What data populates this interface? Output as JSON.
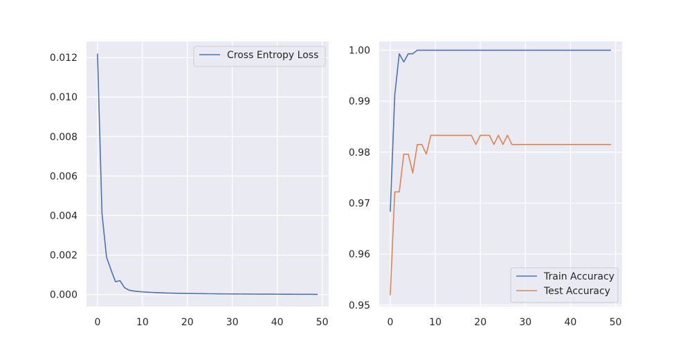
{
  "chart_data": [
    {
      "type": "line",
      "title": "",
      "xlabel": "",
      "ylabel": "",
      "xlim": [
        -2.45,
        51.45
      ],
      "ylim": [
        -0.00061,
        0.01281
      ],
      "xticks": [
        0,
        10,
        20,
        30,
        40,
        50
      ],
      "xtick_labels": [
        "0",
        "10",
        "20",
        "30",
        "40",
        "50"
      ],
      "yticks": [
        0,
        0.002,
        0.004,
        0.006,
        0.008,
        0.01,
        0.012
      ],
      "ytick_labels": [
        "0.000",
        "0.002",
        "0.004",
        "0.006",
        "0.008",
        "0.010",
        "0.012"
      ],
      "grid": true,
      "legend_position": "top-right",
      "series": [
        {
          "name": "Cross Entropy Loss",
          "color": "#4c72b0",
          "x": [
            0,
            1,
            2,
            3,
            4,
            5,
            6,
            7,
            8,
            9,
            10,
            11,
            12,
            13,
            14,
            15,
            16,
            17,
            18,
            19,
            20,
            21,
            22,
            23,
            24,
            25,
            26,
            27,
            28,
            29,
            30,
            31,
            32,
            33,
            34,
            35,
            36,
            37,
            38,
            39,
            40,
            41,
            42,
            43,
            44,
            45,
            46,
            47,
            48,
            49
          ],
          "y": [
            0.0122,
            0.0041,
            0.0019,
            0.00125,
            0.00065,
            0.0007,
            0.00035,
            0.00022,
            0.00018,
            0.000155,
            0.000135,
            0.00012,
            0.000108,
            9.7e-05,
            8.8e-05,
            8e-05,
            7.3e-05,
            6.7e-05,
            6.2e-05,
            5.7e-05,
            5.3e-05,
            4.9e-05,
            4.6e-05,
            4.3e-05,
            4e-05,
            3.8e-05,
            3.5e-05,
            3.3e-05,
            3.1e-05,
            2.9e-05,
            2.8e-05,
            2.6e-05,
            2.5e-05,
            2.3e-05,
            2.2e-05,
            2.1e-05,
            2e-05,
            1.9e-05,
            1.8e-05,
            1.7e-05,
            1.6e-05,
            1.5e-05,
            1.4e-05,
            1.3e-05,
            1.2e-05,
            1.1e-05,
            1e-05,
            9e-06,
            8e-06,
            7e-06
          ]
        }
      ]
    },
    {
      "type": "line",
      "title": "",
      "xlabel": "",
      "ylabel": "",
      "xlim": [
        -2.45,
        51.45
      ],
      "ylim": [
        0.9497,
        1.0017
      ],
      "xticks": [
        0,
        10,
        20,
        30,
        40,
        50
      ],
      "xtick_labels": [
        "0",
        "10",
        "20",
        "30",
        "40",
        "50"
      ],
      "yticks": [
        0.95,
        0.96,
        0.97,
        0.98,
        0.99,
        1.0
      ],
      "ytick_labels": [
        "0.95",
        "0.96",
        "0.97",
        "0.98",
        "0.99",
        "1.00"
      ],
      "grid": true,
      "legend_position": "bottom-right",
      "series": [
        {
          "name": "Train Accuracy",
          "color": "#4c72b0",
          "x": [
            0,
            1,
            2,
            3,
            4,
            5,
            6,
            7,
            8,
            9,
            10,
            11,
            12,
            13,
            14,
            15,
            16,
            17,
            18,
            19,
            20,
            21,
            22,
            23,
            24,
            25,
            26,
            27,
            28,
            29,
            30,
            31,
            32,
            33,
            34,
            35,
            36,
            37,
            38,
            39,
            40,
            41,
            42,
            43,
            44,
            45,
            46,
            47,
            48,
            49
          ],
          "y": [
            0.9683,
            0.9912,
            0.9993,
            0.9977,
            0.9993,
            0.9993,
            1.0,
            1.0,
            1.0,
            1.0,
            1.0,
            1.0,
            1.0,
            1.0,
            1.0,
            1.0,
            1.0,
            1.0,
            1.0,
            1.0,
            1.0,
            1.0,
            1.0,
            1.0,
            1.0,
            1.0,
            1.0,
            1.0,
            1.0,
            1.0,
            1.0,
            1.0,
            1.0,
            1.0,
            1.0,
            1.0,
            1.0,
            1.0,
            1.0,
            1.0,
            1.0,
            1.0,
            1.0,
            1.0,
            1.0,
            1.0,
            1.0,
            1.0,
            1.0,
            1.0
          ]
        },
        {
          "name": "Test Accuracy",
          "color": "#dd8452",
          "x": [
            0,
            1,
            2,
            3,
            4,
            5,
            6,
            7,
            8,
            9,
            10,
            11,
            12,
            13,
            14,
            15,
            16,
            17,
            18,
            19,
            20,
            21,
            22,
            23,
            24,
            25,
            26,
            27,
            28,
            29,
            30,
            31,
            32,
            33,
            34,
            35,
            36,
            37,
            38,
            39,
            40,
            41,
            42,
            43,
            44,
            45,
            46,
            47,
            48,
            49
          ],
          "y": [
            0.9519,
            0.9722,
            0.9722,
            0.9796,
            0.9796,
            0.9759,
            0.9815,
            0.9815,
            0.9796,
            0.9833,
            0.9833,
            0.9833,
            0.9833,
            0.9833,
            0.9833,
            0.9833,
            0.9833,
            0.9833,
            0.9833,
            0.9815,
            0.9833,
            0.9833,
            0.9833,
            0.9815,
            0.9833,
            0.9815,
            0.9833,
            0.9815,
            0.9815,
            0.9815,
            0.9815,
            0.9815,
            0.9815,
            0.9815,
            0.9815,
            0.9815,
            0.9815,
            0.9815,
            0.9815,
            0.9815,
            0.9815,
            0.9815,
            0.9815,
            0.9815,
            0.9815,
            0.9815,
            0.9815,
            0.9815,
            0.9815,
            0.9815
          ]
        }
      ]
    }
  ]
}
